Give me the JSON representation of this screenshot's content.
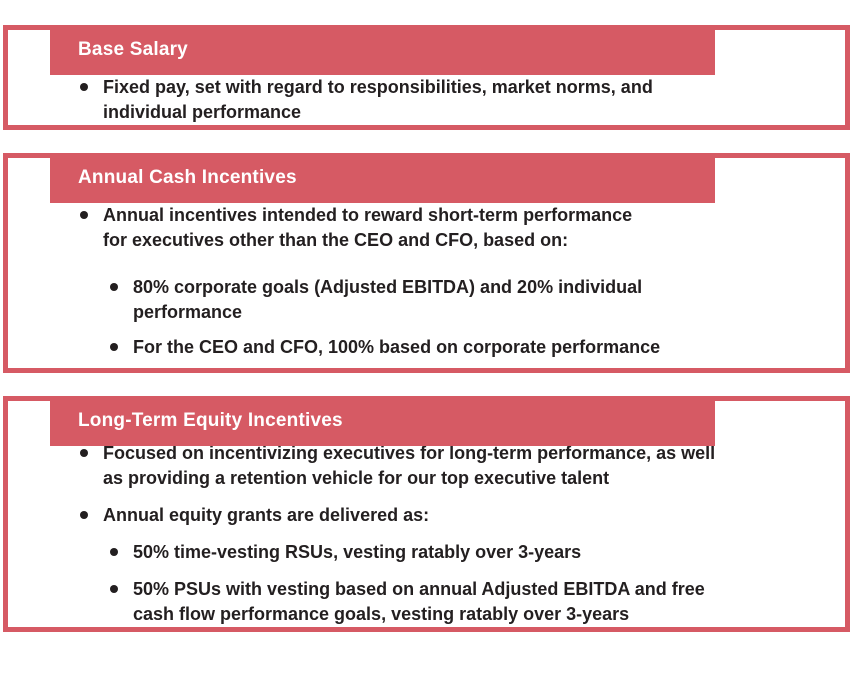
{
  "colors": {
    "accent": "#D65A64",
    "text": "#231F20",
    "header_text": "#FFFFFF"
  },
  "sections": [
    {
      "title": "Base Salary",
      "bullets": [
        {
          "text": "Fixed pay, set with regard to responsibilities, market norms, and\nindividual performance",
          "sub": []
        }
      ]
    },
    {
      "title": "Annual Cash Incentives",
      "bullets": [
        {
          "text": "Annual incentives intended to reward short-term performance\nfor executives other than the CEO and CFO, based on:",
          "sub": [
            "80% corporate goals (Adjusted EBITDA) and 20% individual\nperformance",
            "For the CEO and CFO, 100% based on corporate performance"
          ]
        }
      ]
    },
    {
      "title": "Long-Term Equity Incentives",
      "bullets": [
        {
          "text": "Focused on incentivizing executives for long-term performance, as well\nas providing a retention vehicle for our top executive talent",
          "sub": []
        },
        {
          "text": "Annual equity grants are delivered as:",
          "sub": [
            "50% time-vesting RSUs, vesting ratably over 3-years",
            "50% PSUs with vesting based on annual Adjusted EBITDA and free\ncash flow performance goals, vesting ratably over 3-years"
          ]
        }
      ]
    }
  ]
}
